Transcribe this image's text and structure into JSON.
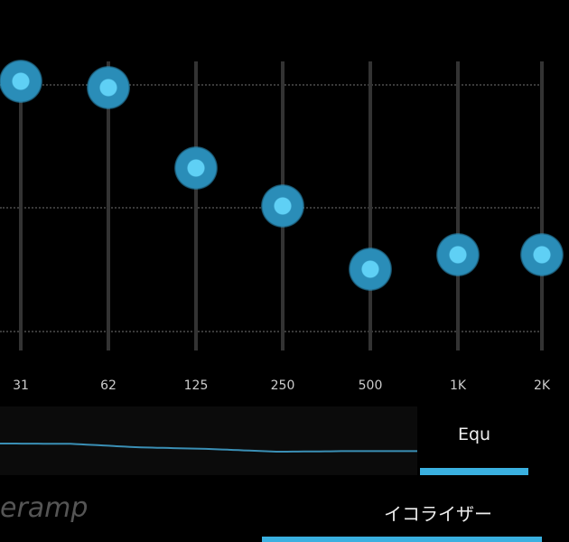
{
  "equalizer": {
    "accent_color": "#3ab0e0",
    "bands": [
      {
        "label": "31",
        "level": 0.93
      },
      {
        "label": "62",
        "level": 0.91
      },
      {
        "label": "125",
        "level": 0.63
      },
      {
        "label": "250",
        "level": 0.5
      },
      {
        "label": "500",
        "level": 0.28
      },
      {
        "label": "1K",
        "level": 0.33
      },
      {
        "label": "2K",
        "level": 0.33
      }
    ]
  },
  "tabs": {
    "equ_label": "Equ"
  },
  "footer": {
    "brand_text": "eramp",
    "screen_title": "イコライザー"
  }
}
